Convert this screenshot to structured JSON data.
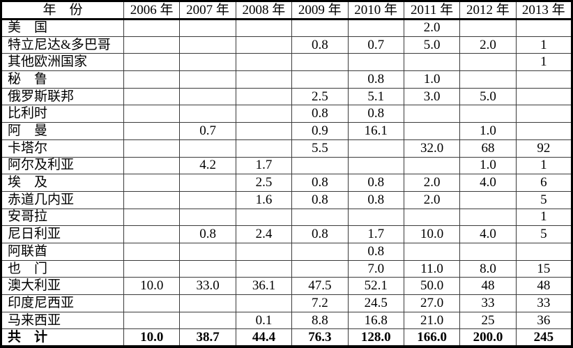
{
  "page": {
    "background_color": "#ffffff",
    "text_color": "#000000",
    "border_color": "#000000"
  },
  "table": {
    "columns": [
      "年　份",
      "2006 年",
      "2007 年",
      "2008 年",
      "2009 年",
      "2010 年",
      "2011 年",
      "2012 年",
      "2013 年"
    ],
    "rows": [
      {
        "label": "美　国",
        "values": [
          "",
          "",
          "",
          "",
          "",
          "2.0",
          "",
          ""
        ]
      },
      {
        "label": "特立尼达&多巴哥",
        "values": [
          "",
          "",
          "",
          "0.8",
          "0.7",
          "5.0",
          "2.0",
          "1"
        ]
      },
      {
        "label": "其他欧洲国家",
        "values": [
          "",
          "",
          "",
          "",
          "",
          "",
          "",
          "1"
        ]
      },
      {
        "label": "秘　鲁",
        "values": [
          "",
          "",
          "",
          "",
          "0.8",
          "1.0",
          "",
          ""
        ]
      },
      {
        "label": "俄罗斯联邦",
        "values": [
          "",
          "",
          "",
          "2.5",
          "5.1",
          "3.0",
          "5.0",
          ""
        ]
      },
      {
        "label": "比利时",
        "values": [
          "",
          "",
          "",
          "0.8",
          "0.8",
          "",
          "",
          ""
        ]
      },
      {
        "label": "阿　曼",
        "values": [
          "",
          "0.7",
          "",
          "0.9",
          "16.1",
          "",
          "1.0",
          ""
        ]
      },
      {
        "label": "卡塔尔",
        "values": [
          "",
          "",
          "",
          "5.5",
          "",
          "32.0",
          "68",
          "92"
        ]
      },
      {
        "label": "阿尔及利亚",
        "values": [
          "",
          "4.2",
          "1.7",
          "",
          "",
          "",
          "1.0",
          "1"
        ]
      },
      {
        "label": "埃　及",
        "values": [
          "",
          "",
          "2.5",
          "0.8",
          "0.8",
          "2.0",
          "4.0",
          "6"
        ]
      },
      {
        "label": "赤道几内亚",
        "values": [
          "",
          "",
          "1.6",
          "0.8",
          "0.8",
          "2.0",
          "",
          "5"
        ]
      },
      {
        "label": "安哥拉",
        "values": [
          "",
          "",
          "",
          "",
          "",
          "",
          "",
          "1"
        ]
      },
      {
        "label": "尼日利亚",
        "values": [
          "",
          "0.8",
          "2.4",
          "0.8",
          "1.7",
          "10.0",
          "4.0",
          "5"
        ]
      },
      {
        "label": "阿联酋",
        "values": [
          "",
          "",
          "",
          "",
          "0.8",
          "",
          "",
          ""
        ]
      },
      {
        "label": "也　门",
        "values": [
          "",
          "",
          "",
          "",
          "7.0",
          "11.0",
          "8.0",
          "15"
        ]
      },
      {
        "label": "澳大利亚",
        "values": [
          "10.0",
          "33.0",
          "36.1",
          "47.5",
          "52.1",
          "50.0",
          "48",
          "48"
        ]
      },
      {
        "label": "印度尼西亚",
        "values": [
          "",
          "",
          "",
          "7.2",
          "24.5",
          "27.0",
          "33",
          "33"
        ]
      },
      {
        "label": "马来西亚",
        "values": [
          "",
          "",
          "0.1",
          "8.8",
          "16.8",
          "21.0",
          "25",
          "36"
        ]
      }
    ],
    "total_row": {
      "label": "共　计",
      "values": [
        "10.0",
        "38.7",
        "44.4",
        "76.3",
        "128.0",
        "166.0",
        "200.0",
        "245"
      ]
    }
  }
}
